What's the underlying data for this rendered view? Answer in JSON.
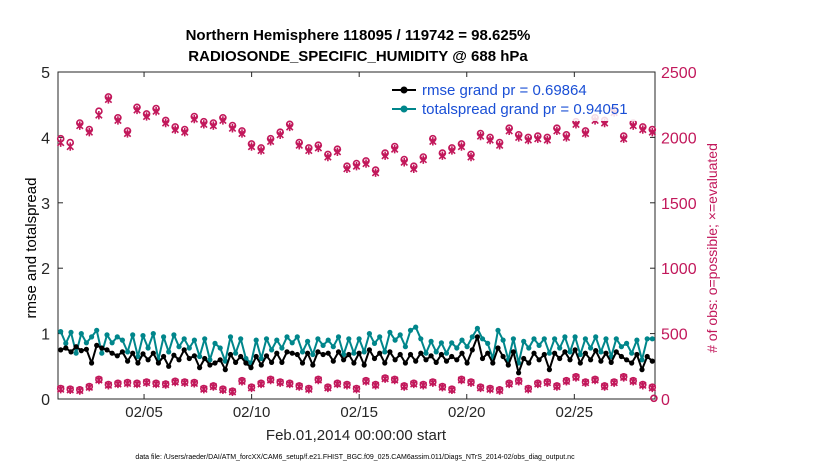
{
  "chart_data": {
    "type": "line",
    "title": "Northern Hemisphere 118095 / 119742 = 98.625%",
    "subtitle": "RADIOSONDE_SPECIFIC_HUMIDITY @ 688 hPa",
    "xlabel": "Feb.01,2014 00:00:00 start",
    "ylabel_left": "rmse and totalspread",
    "ylabel_right": "# of obs: o=possible; ×=evaluated",
    "footer": "data file: /Users/raeder/DAI/ATM_forcXX/CAM6_setup/f.e21.FHIST_BGC.f09_025.CAM6assim.011/Diags_NTrS_2014-02/obs_diag_output.nc",
    "x_ticks": [
      {
        "day": 5,
        "label": "02/05"
      },
      {
        "day": 10,
        "label": "02/10"
      },
      {
        "day": 15,
        "label": "02/15"
      },
      {
        "day": 20,
        "label": "02/20"
      },
      {
        "day": 25,
        "label": "02/25"
      }
    ],
    "xlim_days": [
      1,
      28.75
    ],
    "ylim_left": [
      0,
      5
    ],
    "yticks_left": [
      "0",
      "1",
      "2",
      "3",
      "4",
      "5"
    ],
    "ylim_right": [
      0,
      2500
    ],
    "yticks_right": [
      "0",
      "500",
      "1000",
      "1500",
      "2000",
      "2500"
    ],
    "legend": {
      "placement": "top-right",
      "entries": [
        {
          "series": "rmse",
          "label": "rmse grand pr = 0.69864"
        },
        {
          "series": "totalspread",
          "label": "totalspread grand pr = 0.94051"
        }
      ]
    },
    "colors": {
      "rmse": "#000000",
      "totalspread": "#00868b",
      "obs": "#c2185b"
    },
    "series": [
      {
        "name": "rmse",
        "axis": "left",
        "values": [
          0.75,
          0.78,
          0.72,
          0.8,
          0.74,
          0.76,
          0.55,
          0.82,
          0.78,
          0.75,
          0.7,
          0.66,
          0.72,
          0.58,
          0.7,
          0.55,
          0.69,
          0.6,
          0.7,
          0.55,
          0.65,
          0.5,
          0.67,
          0.6,
          0.75,
          0.62,
          0.66,
          0.48,
          0.62,
          0.52,
          0.55,
          0.6,
          0.45,
          0.68,
          0.56,
          0.65,
          0.55,
          0.48,
          0.65,
          0.52,
          0.66,
          0.56,
          0.7,
          0.56,
          0.72,
          0.7,
          0.68,
          0.55,
          0.7,
          0.52,
          0.72,
          0.68,
          0.7,
          0.58,
          0.72,
          0.6,
          0.68,
          0.55,
          0.7,
          0.52,
          0.75,
          0.62,
          0.7,
          0.55,
          0.72,
          0.6,
          0.68,
          0.55,
          0.68,
          0.58,
          0.7,
          0.6,
          0.66,
          0.56,
          0.68,
          0.58,
          0.65,
          0.6,
          0.7,
          0.55,
          0.75,
          0.95,
          0.62,
          0.7,
          0.55,
          0.78,
          0.65,
          0.52,
          0.72,
          0.4,
          0.62,
          0.55,
          0.7,
          0.6,
          0.68,
          0.45,
          0.7,
          0.62,
          0.72,
          0.6,
          0.75,
          0.55,
          0.7,
          0.6,
          0.74,
          0.58,
          0.7,
          0.56,
          0.72,
          0.65,
          0.6,
          0.55,
          0.68,
          0.45,
          0.65,
          0.58
        ]
      },
      {
        "name": "totalspread",
        "axis": "left",
        "values": [
          1.03,
          0.85,
          1.02,
          0.7,
          1.0,
          0.86,
          0.95,
          1.05,
          0.7,
          0.98,
          0.86,
          0.95,
          0.9,
          0.72,
          0.98,
          0.65,
          0.97,
          0.78,
          1.0,
          0.6,
          0.95,
          0.72,
          0.98,
          0.8,
          0.92,
          0.78,
          0.9,
          0.65,
          0.92,
          0.6,
          0.85,
          0.78,
          0.58,
          0.95,
          0.7,
          0.92,
          0.62,
          0.55,
          0.9,
          0.62,
          0.92,
          0.75,
          0.9,
          0.78,
          0.95,
          0.86,
          0.95,
          0.72,
          0.88,
          0.68,
          0.92,
          0.82,
          0.9,
          0.8,
          0.95,
          0.68,
          0.92,
          0.7,
          0.92,
          0.72,
          1.0,
          0.85,
          0.95,
          0.72,
          1.02,
          0.9,
          0.98,
          0.8,
          1.05,
          1.1,
          0.92,
          0.7,
          0.88,
          0.72,
          0.86,
          0.7,
          0.86,
          0.78,
          0.9,
          0.8,
          0.95,
          1.08,
          0.92,
          0.85,
          0.62,
          1.05,
          0.9,
          0.6,
          0.92,
          0.55,
          0.88,
          0.78,
          0.92,
          0.82,
          0.92,
          0.7,
          0.92,
          0.78,
          0.95,
          0.72,
          0.95,
          0.68,
          0.92,
          0.78,
          0.95,
          0.72,
          0.92,
          0.65,
          0.92,
          0.8,
          0.85,
          0.7,
          0.9,
          0.6,
          0.92,
          0.92
        ]
      },
      {
        "name": "possible",
        "axis": "right",
        "marker": "o",
        "values": [
          1990,
          1960,
          2110,
          2060,
          2200,
          2310,
          2150,
          2050,
          2230,
          2180,
          2220,
          2130,
          2080,
          2060,
          2160,
          2120,
          2110,
          2150,
          2090,
          2050,
          1950,
          1920,
          1990,
          2040,
          2100,
          1960,
          1920,
          1940,
          1870,
          1910,
          1780,
          1800,
          1820,
          1750,
          1880,
          1930,
          1830,
          1780,
          1850,
          1990,
          1880,
          1920,
          1950,
          1870,
          2030,
          2000,
          1960,
          2070,
          2020,
          2000,
          2010,
          2000,
          2070,
          2020,
          2120,
          2050,
          2150,
          2130,
          2210,
          2010,
          2110,
          2080,
          2060
        ]
      },
      {
        "name": "evaluated",
        "axis": "right",
        "marker": "x",
        "values": [
          1960,
          1930,
          2090,
          2040,
          2170,
          2290,
          2130,
          2030,
          2210,
          2160,
          2200,
          2110,
          2060,
          2040,
          2140,
          2100,
          2090,
          2130,
          2070,
          2030,
          1930,
          1900,
          1970,
          2020,
          2080,
          1940,
          1900,
          1920,
          1850,
          1890,
          1760,
          1780,
          1800,
          1730,
          1860,
          1910,
          1810,
          1760,
          1830,
          1970,
          1860,
          1900,
          1930,
          1850,
          2010,
          1980,
          1940,
          2050,
          2000,
          1980,
          1990,
          1980,
          2050,
          2000,
          2100,
          2030,
          2130,
          2110,
          2190,
          1990,
          2090,
          2060,
          2040
        ]
      },
      {
        "name": "possible_low",
        "axis": "right",
        "marker": "o",
        "values": [
          80,
          75,
          70,
          95,
          150,
          110,
          120,
          125,
          120,
          130,
          120,
          115,
          135,
          130,
          125,
          80,
          100,
          75,
          60,
          140,
          90,
          120,
          150,
          130,
          120,
          100,
          80,
          150,
          90,
          120,
          110,
          80,
          140,
          110,
          160,
          150,
          100,
          120,
          110,
          130,
          95,
          75,
          150,
          130,
          90,
          80,
          70,
          120,
          140,
          80,
          120,
          130,
          100,
          140,
          170,
          130,
          150,
          100,
          130,
          170,
          140,
          110,
          90
        ]
      },
      {
        "name": "evaluated_low",
        "axis": "right",
        "marker": "x",
        "values": [
          75,
          70,
          65,
          90,
          145,
          105,
          115,
          120,
          115,
          125,
          115,
          110,
          130,
          125,
          120,
          75,
          95,
          70,
          55,
          135,
          85,
          115,
          145,
          125,
          115,
          95,
          75,
          145,
          85,
          115,
          105,
          75,
          135,
          105,
          155,
          145,
          95,
          115,
          105,
          125,
          90,
          70,
          145,
          125,
          85,
          75,
          65,
          115,
          135,
          75,
          115,
          125,
          95,
          135,
          165,
          125,
          145,
          95,
          125,
          165,
          135,
          105,
          85
        ]
      }
    ]
  }
}
